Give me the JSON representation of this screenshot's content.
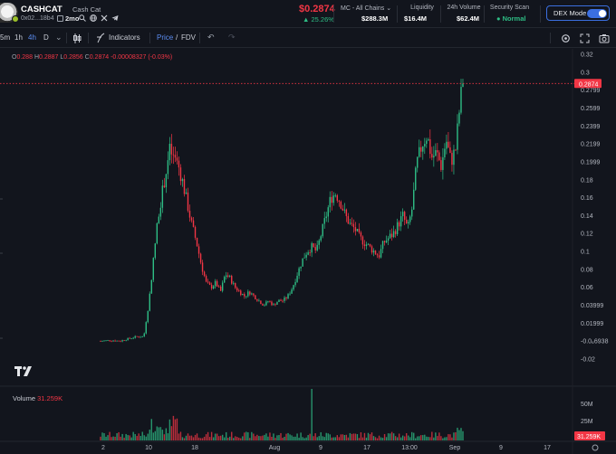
{
  "token": {
    "symbol": "CASHCAT",
    "name": "Cash Cat",
    "address": "0x02...18b4",
    "age": "2mo",
    "price": "$0.2874",
    "change": "▲ 25.26%"
  },
  "stats": {
    "mc_label": "MC - All Chains",
    "mc_value": "$288.3M",
    "liquidity_label": "Liquidity",
    "liquidity_value": "$16.4M",
    "volume_label": "24h Volume",
    "volume_value": "$62.4M",
    "scan_label": "Security Scan",
    "scan_value": "Normal",
    "dex_mode_label": "DEX Mode",
    "dex_mode_on": true
  },
  "toolbar": {
    "intervals": [
      "5m",
      "1h",
      "4h",
      "D"
    ],
    "active_interval": "4h",
    "indicators_label": "Indicators",
    "price_label": "Price",
    "slash": "/",
    "fdv_label": "FDV"
  },
  "ohlc": {
    "o_label": "O",
    "o": "0.288",
    "h_label": "H",
    "h": "0.2887",
    "l_label": "L",
    "l": "0.2856",
    "c_label": "C",
    "c": "0.2874",
    "chg": "-0.00008327 (-0.03%)"
  },
  "volume": {
    "label": "Volume",
    "value": "31.259K"
  },
  "colors": {
    "up": "#2ebd85",
    "down": "#f23645",
    "accent": "#3b6fe0",
    "bg": "#12151d"
  },
  "icons": [
    "copy-icon",
    "search-icon",
    "x-icon",
    "globe-icon",
    "telegram-icon",
    "candle-type-icon",
    "indicators-icon",
    "undo-icon",
    "redo-icon",
    "settings-icon",
    "fullscreen-icon",
    "camera-icon",
    "chevron-down-icon"
  ],
  "chart_data": {
    "type": "candlestick",
    "y_ticks": [
      "0.32",
      "0.3",
      "0.2799",
      "0.2599",
      "0.2399",
      "0.2199",
      "0.1999",
      "0.18",
      "0.16",
      "0.14",
      "0.12",
      "0.1",
      "0.08",
      "0.06",
      "0.03999",
      "0.01999",
      "-0.0₆6938",
      "-0.02"
    ],
    "ylim": [
      -0.02,
      0.32
    ],
    "x_ticks": [
      "2",
      "10",
      "18",
      "Aug",
      "9",
      "17",
      "13:00",
      "Sep",
      "9",
      "17"
    ],
    "last_price_label": "0.2874",
    "volume_ticks": [
      "50M",
      "25M"
    ],
    "volume_last_label": "31.259K",
    "price_path": [
      [
        0,
        0.0
      ],
      [
        4,
        0.001
      ],
      [
        8,
        0.0
      ],
      [
        12,
        0.003
      ],
      [
        15,
        0.005
      ],
      [
        18,
        0.005
      ],
      [
        20,
        0.04
      ],
      [
        22,
        0.09
      ],
      [
        24,
        0.14
      ],
      [
        26,
        0.17
      ],
      [
        28,
        0.2
      ],
      [
        29,
        0.215
      ],
      [
        30,
        0.205
      ],
      [
        32,
        0.2
      ],
      [
        34,
        0.18
      ],
      [
        36,
        0.155
      ],
      [
        38,
        0.13
      ],
      [
        40,
        0.11
      ],
      [
        42,
        0.085
      ],
      [
        44,
        0.065
      ],
      [
        46,
        0.06
      ],
      [
        48,
        0.065
      ],
      [
        50,
        0.055
      ],
      [
        52,
        0.075
      ],
      [
        54,
        0.07
      ],
      [
        56,
        0.06
      ],
      [
        58,
        0.055
      ],
      [
        60,
        0.05
      ],
      [
        62,
        0.055
      ],
      [
        64,
        0.05
      ],
      [
        66,
        0.045
      ],
      [
        68,
        0.04
      ],
      [
        70,
        0.045
      ],
      [
        72,
        0.04
      ],
      [
        74,
        0.045
      ],
      [
        76,
        0.045
      ],
      [
        78,
        0.05
      ],
      [
        80,
        0.06
      ],
      [
        82,
        0.075
      ],
      [
        84,
        0.09
      ],
      [
        86,
        0.1
      ],
      [
        88,
        0.105
      ],
      [
        90,
        0.1
      ],
      [
        92,
        0.12
      ],
      [
        94,
        0.14
      ],
      [
        96,
        0.16
      ],
      [
        98,
        0.165
      ],
      [
        100,
        0.155
      ],
      [
        102,
        0.14
      ],
      [
        104,
        0.13
      ],
      [
        106,
        0.125
      ],
      [
        108,
        0.115
      ],
      [
        110,
        0.11
      ],
      [
        112,
        0.105
      ],
      [
        114,
        0.1
      ],
      [
        116,
        0.095
      ],
      [
        118,
        0.11
      ],
      [
        120,
        0.115
      ],
      [
        122,
        0.12
      ],
      [
        124,
        0.13
      ],
      [
        126,
        0.14
      ],
      [
        128,
        0.125
      ],
      [
        130,
        0.15
      ],
      [
        131,
        0.18
      ],
      [
        132,
        0.2
      ],
      [
        134,
        0.22
      ],
      [
        136,
        0.23
      ],
      [
        138,
        0.205
      ],
      [
        140,
        0.21
      ],
      [
        142,
        0.195
      ],
      [
        144,
        0.225
      ],
      [
        146,
        0.2
      ],
      [
        148,
        0.215
      ],
      [
        150,
        0.27
      ],
      [
        151,
        0.2874
      ]
    ]
  }
}
